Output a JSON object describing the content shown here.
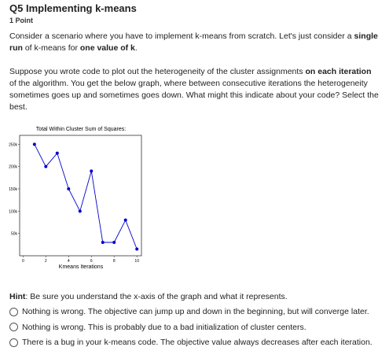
{
  "question": {
    "title": "Q5 Implementing k-means",
    "points": "1 Point",
    "paragraphs": [
      [
        {
          "text": "Consider a scenario where you have to implement k-means from scratch. Let's just consider a ",
          "bold": false
        },
        {
          "text": "single run",
          "bold": true
        },
        {
          "text": " of k-means for ",
          "bold": false
        },
        {
          "text": "one value of k",
          "bold": true
        },
        {
          "text": ".",
          "bold": false
        }
      ],
      [
        {
          "text": "Suppose you wrote code to plot out the heterogeneity of the cluster assignments ",
          "bold": false
        },
        {
          "text": "on each iteration",
          "bold": true
        },
        {
          "text": " of the algorithm. You get the below graph, where between consecutive iterations the heterogeneity sometimes goes up and sometimes goes down. What might this indicate about your code? Select the best.",
          "bold": false
        }
      ]
    ],
    "hint": [
      {
        "text": "Hint",
        "bold": true
      },
      {
        "text": ": Be sure you understand the x-axis of the graph and what it represents.",
        "bold": false
      }
    ],
    "options": [
      "Nothing is wrong. The objective can jump up and down in the beginning, but will converge later.",
      "Nothing is wrong. This is probably due to a bad initialization of cluster centers.",
      "There is a bug in your k-means code. The objective value always decreases after each iteration."
    ]
  },
  "chart_data": {
    "type": "line",
    "title": "Total Within Cluster Sum of Squares:",
    "x_label": "Kmeans Iterations",
    "x": [
      1,
      2,
      3,
      4,
      5,
      6,
      7,
      8,
      9,
      10
    ],
    "series": [
      {
        "color": "#0000cc",
        "values": [
          250000,
          200000,
          230000,
          150000,
          100000,
          190000,
          30000,
          30000,
          80000,
          15000
        ]
      }
    ],
    "xlim": [
      -0.3,
      10.4
    ],
    "ylim": [
      0,
      270000
    ],
    "xticks": [
      0,
      2,
      4,
      6,
      8,
      10
    ],
    "yticks": [
      {
        "value": 50000,
        "label": "50k"
      },
      {
        "value": 100000,
        "label": "100k"
      },
      {
        "value": 150000,
        "label": "150k"
      },
      {
        "value": 200000,
        "label": "200k"
      },
      {
        "value": 250000,
        "label": "250k"
      }
    ]
  }
}
